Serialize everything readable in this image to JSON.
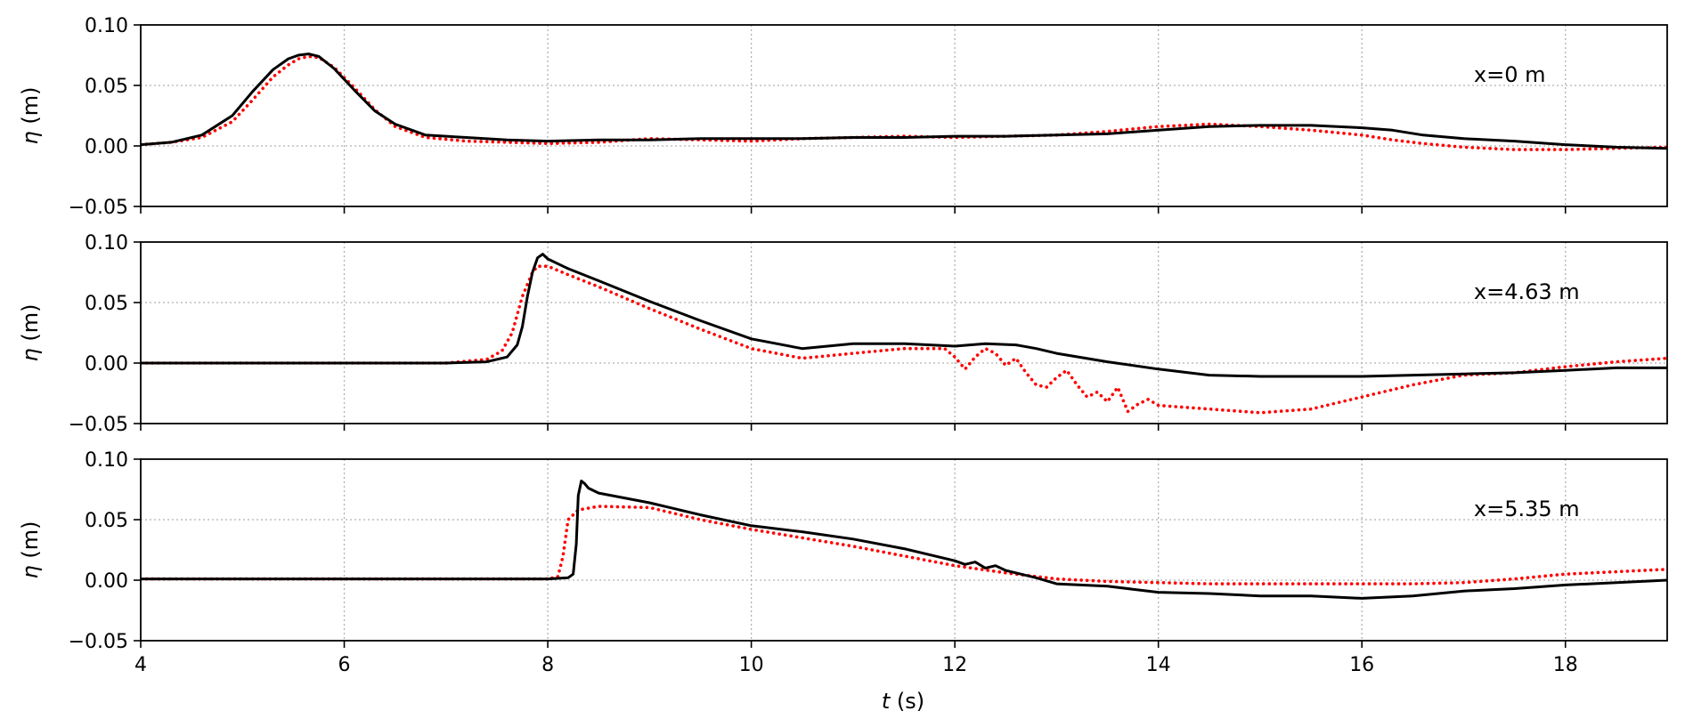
{
  "chart_data": {
    "type": "line",
    "xlabel_italic": "t",
    "xlabel_unit": " (s)",
    "ylabel_italic": "η",
    "ylabel_unit": " (m)",
    "xlim": [
      4,
      19
    ],
    "ylim": [
      -0.05,
      0.1
    ],
    "xticks": [
      4,
      6,
      8,
      10,
      12,
      14,
      16,
      18
    ],
    "xtick_labels": [
      "4",
      "6",
      "8",
      "10",
      "12",
      "14",
      "16",
      "18"
    ],
    "yticks": [
      -0.05,
      0.0,
      0.05,
      0.1
    ],
    "ytick_labels": [
      "−0.05",
      "0.00",
      "0.05",
      "0.10"
    ],
    "grid": true,
    "series_styles": [
      {
        "color": "#000000",
        "style": "solid"
      },
      {
        "color": "#ff0000",
        "style": "dotted"
      }
    ],
    "panels": [
      {
        "annotation": "x=0 m",
        "series": [
          {
            "x": [
              4.0,
              4.3,
              4.6,
              4.9,
              5.1,
              5.3,
              5.45,
              5.55,
              5.65,
              5.75,
              5.9,
              6.1,
              6.3,
              6.5,
              6.8,
              7.2,
              7.6,
              8.0,
              8.5,
              9.0,
              9.5,
              10.0,
              10.5,
              11.0,
              11.5,
              12.0,
              12.5,
              13.0,
              13.5,
              14.0,
              14.5,
              15.0,
              15.5,
              16.0,
              16.3,
              16.6,
              17.0,
              17.5,
              18.0,
              18.5,
              19.0
            ],
            "y": [
              0.001,
              0.003,
              0.009,
              0.025,
              0.045,
              0.063,
              0.072,
              0.075,
              0.076,
              0.074,
              0.064,
              0.046,
              0.029,
              0.018,
              0.009,
              0.007,
              0.005,
              0.004,
              0.005,
              0.005,
              0.006,
              0.006,
              0.006,
              0.007,
              0.007,
              0.008,
              0.008,
              0.009,
              0.01,
              0.013,
              0.016,
              0.017,
              0.017,
              0.015,
              0.013,
              0.009,
              0.006,
              0.004,
              0.001,
              -0.001,
              -0.002
            ]
          },
          {
            "x": [
              4.0,
              4.3,
              4.6,
              4.9,
              5.1,
              5.3,
              5.45,
              5.55,
              5.65,
              5.75,
              5.9,
              6.1,
              6.3,
              6.5,
              6.8,
              7.2,
              7.6,
              8.0,
              8.5,
              9.0,
              9.5,
              10.0,
              10.5,
              11.0,
              11.5,
              12.0,
              12.5,
              13.0,
              13.5,
              14.0,
              14.5,
              15.0,
              15.5,
              16.0,
              16.3,
              16.6,
              17.0,
              17.5,
              18.0,
              18.5,
              19.0
            ],
            "y": [
              0.001,
              0.003,
              0.007,
              0.02,
              0.038,
              0.057,
              0.067,
              0.072,
              0.074,
              0.073,
              0.065,
              0.048,
              0.03,
              0.016,
              0.007,
              0.004,
              0.003,
              0.002,
              0.003,
              0.006,
              0.005,
              0.004,
              0.006,
              0.007,
              0.008,
              0.007,
              0.008,
              0.009,
              0.012,
              0.016,
              0.018,
              0.016,
              0.013,
              0.009,
              0.005,
              0.002,
              -0.001,
              -0.003,
              -0.003,
              -0.002,
              -0.001
            ]
          }
        ]
      },
      {
        "annotation": "x=4.63 m",
        "series": [
          {
            "x": [
              4.0,
              5.0,
              6.0,
              7.0,
              7.4,
              7.6,
              7.7,
              7.75,
              7.8,
              7.85,
              7.9,
              7.95,
              8.0,
              8.2,
              8.5,
              9.0,
              9.5,
              10.0,
              10.5,
              11.0,
              11.5,
              12.0,
              12.3,
              12.6,
              12.8,
              13.0,
              13.5,
              14.0,
              14.5,
              15.0,
              15.5,
              16.0,
              16.5,
              17.0,
              17.5,
              18.0,
              18.5,
              19.0
            ],
            "y": [
              0.0,
              0.0,
              0.0,
              0.0,
              0.001,
              0.005,
              0.015,
              0.03,
              0.055,
              0.075,
              0.087,
              0.09,
              0.086,
              0.078,
              0.068,
              0.051,
              0.035,
              0.02,
              0.012,
              0.016,
              0.016,
              0.014,
              0.016,
              0.015,
              0.012,
              0.008,
              0.001,
              -0.005,
              -0.01,
              -0.011,
              -0.011,
              -0.011,
              -0.01,
              -0.009,
              -0.008,
              -0.006,
              -0.004,
              -0.004
            ]
          },
          {
            "x": [
              4.0,
              5.0,
              6.0,
              7.0,
              7.4,
              7.55,
              7.65,
              7.7,
              7.75,
              7.8,
              7.85,
              7.9,
              8.0,
              8.2,
              8.5,
              9.0,
              9.5,
              10.0,
              10.5,
              11.0,
              11.5,
              11.9,
              12.0,
              12.1,
              12.2,
              12.3,
              12.4,
              12.5,
              12.6,
              12.7,
              12.8,
              12.9,
              13.0,
              13.1,
              13.2,
              13.3,
              13.4,
              13.5,
              13.6,
              13.7,
              13.8,
              13.9,
              14.0,
              14.5,
              15.0,
              15.5,
              16.0,
              16.5,
              17.0,
              17.5,
              18.0,
              18.5,
              19.0
            ],
            "y": [
              0.0,
              0.0,
              0.0,
              0.0,
              0.003,
              0.01,
              0.025,
              0.04,
              0.055,
              0.065,
              0.075,
              0.08,
              0.08,
              0.073,
              0.063,
              0.045,
              0.028,
              0.012,
              0.004,
              0.008,
              0.012,
              0.012,
              0.005,
              -0.005,
              0.005,
              0.012,
              0.008,
              -0.002,
              0.004,
              -0.008,
              -0.018,
              -0.02,
              -0.012,
              -0.006,
              -0.018,
              -0.028,
              -0.024,
              -0.032,
              -0.02,
              -0.04,
              -0.034,
              -0.03,
              -0.035,
              -0.038,
              -0.041,
              -0.038,
              -0.028,
              -0.018,
              -0.01,
              -0.008,
              -0.003,
              0.001,
              0.004
            ]
          }
        ]
      },
      {
        "annotation": "x=5.35 m",
        "series": [
          {
            "x": [
              4.0,
              5.0,
              6.0,
              7.0,
              8.0,
              8.2,
              8.25,
              8.28,
              8.3,
              8.33,
              8.36,
              8.4,
              8.45,
              8.5,
              9.0,
              9.5,
              10.0,
              10.5,
              11.0,
              11.5,
              12.0,
              12.1,
              12.2,
              12.3,
              12.4,
              12.5,
              12.8,
              13.0,
              13.5,
              14.0,
              14.5,
              15.0,
              15.5,
              16.0,
              16.5,
              17.0,
              17.5,
              18.0,
              18.5,
              19.0
            ],
            "y": [
              0.001,
              0.001,
              0.001,
              0.001,
              0.001,
              0.002,
              0.005,
              0.03,
              0.07,
              0.082,
              0.08,
              0.076,
              0.074,
              0.072,
              0.064,
              0.054,
              0.045,
              0.04,
              0.034,
              0.026,
              0.016,
              0.013,
              0.015,
              0.01,
              0.012,
              0.008,
              0.002,
              -0.003,
              -0.005,
              -0.01,
              -0.011,
              -0.013,
              -0.013,
              -0.015,
              -0.013,
              -0.009,
              -0.007,
              -0.004,
              -0.002,
              0.0
            ]
          },
          {
            "x": [
              4.0,
              5.0,
              6.0,
              7.0,
              8.0,
              8.1,
              8.15,
              8.2,
              8.3,
              8.5,
              9.0,
              9.5,
              10.0,
              10.5,
              11.0,
              11.5,
              12.0,
              12.5,
              13.0,
              13.5,
              14.0,
              14.5,
              15.0,
              15.5,
              16.0,
              16.5,
              17.0,
              17.5,
              18.0,
              18.5,
              19.0
            ],
            "y": [
              0.001,
              0.001,
              0.001,
              0.001,
              0.001,
              0.003,
              0.02,
              0.05,
              0.058,
              0.061,
              0.06,
              0.05,
              0.042,
              0.035,
              0.028,
              0.02,
              0.012,
              0.006,
              0.001,
              -0.001,
              -0.002,
              -0.003,
              -0.003,
              -0.003,
              -0.003,
              -0.003,
              -0.002,
              0.001,
              0.005,
              0.007,
              0.009
            ]
          }
        ]
      }
    ]
  }
}
